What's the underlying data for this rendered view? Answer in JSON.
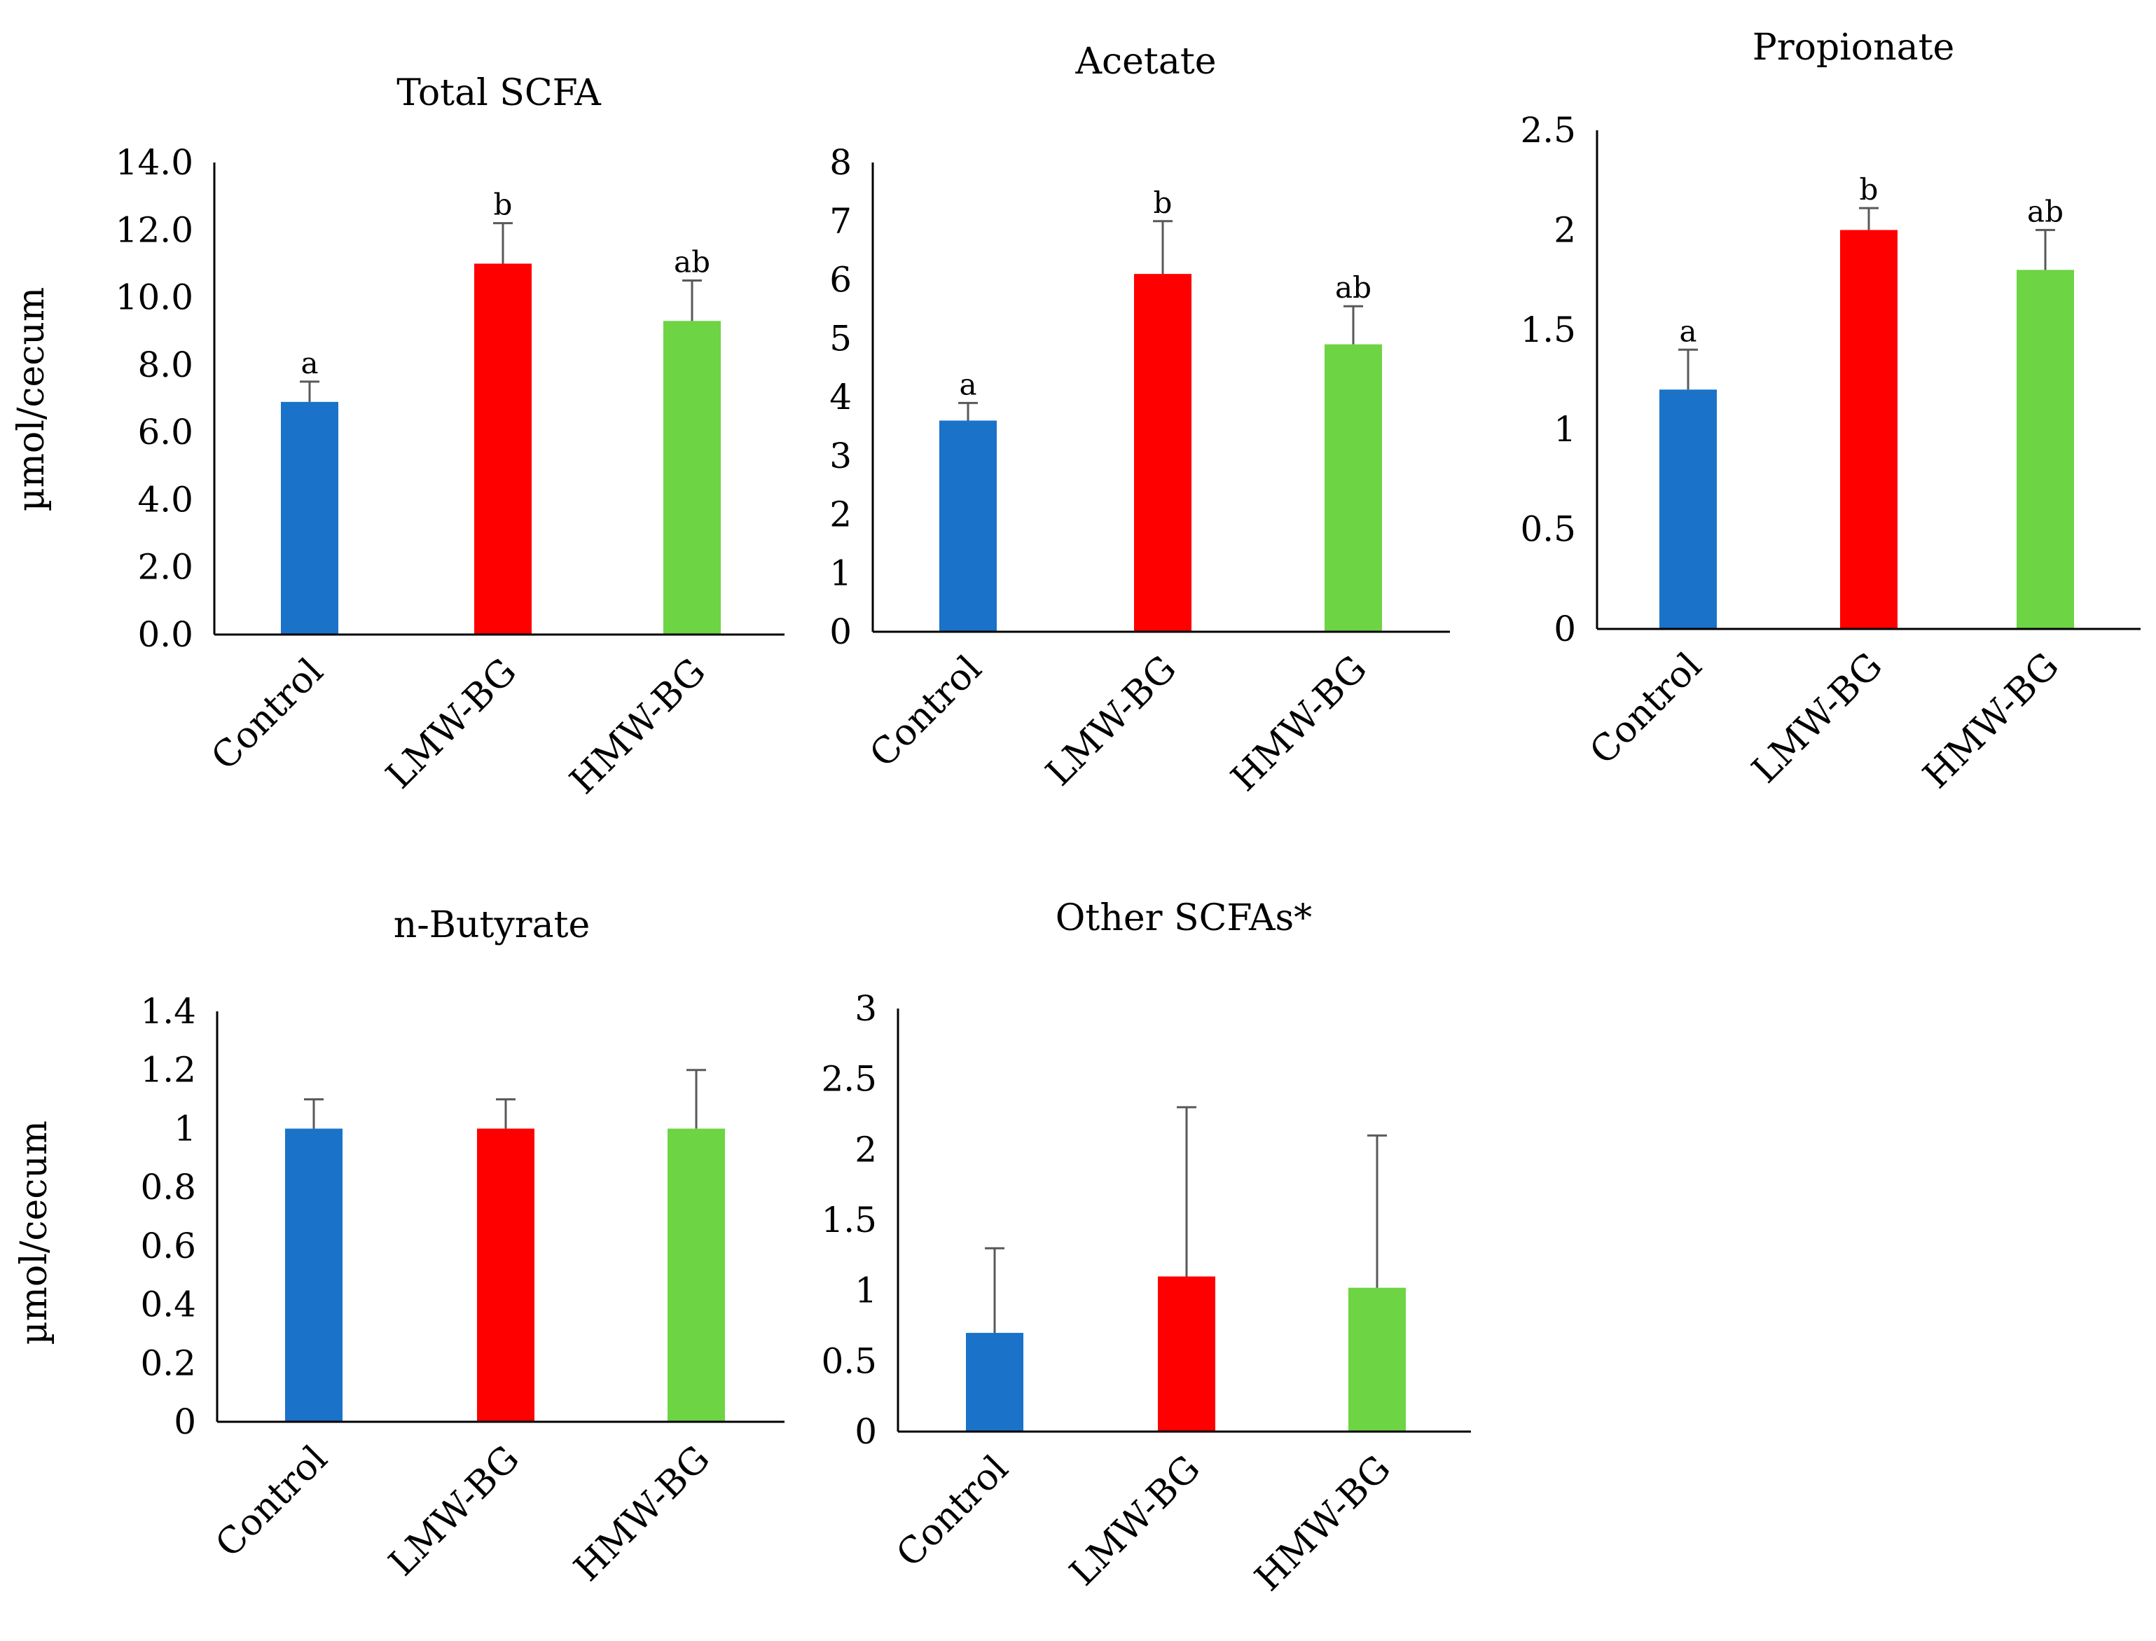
{
  "chart_data": [
    {
      "type": "bar",
      "title": "Total SCFA",
      "ylabel": "µmol/cecum",
      "categories": [
        "Control",
        "LMW-BG",
        "HMW-BG"
      ],
      "values": [
        6.9,
        11.0,
        9.3
      ],
      "errors": [
        0.6,
        1.2,
        1.2
      ],
      "letters": [
        "a",
        "b",
        "ab"
      ],
      "ylim": [
        0,
        14
      ],
      "ticks": [
        "0.0",
        "2.0",
        "4.0",
        "6.0",
        "8.0",
        "10.0",
        "12.0",
        "14.0"
      ],
      "colors": [
        "#1a72c9",
        "#ff0000",
        "#6dd444"
      ]
    },
    {
      "type": "bar",
      "title": "Acetate",
      "ylabel": "",
      "categories": [
        "Control",
        "LMW-BG",
        "HMW-BG"
      ],
      "values": [
        3.6,
        6.1,
        4.9
      ],
      "errors": [
        0.3,
        0.9,
        0.65
      ],
      "letters": [
        "a",
        "b",
        "ab"
      ],
      "ylim": [
        0,
        8
      ],
      "ticks": [
        "0",
        "1",
        "2",
        "3",
        "4",
        "5",
        "6",
        "7",
        "8"
      ],
      "colors": [
        "#1a72c9",
        "#ff0000",
        "#6dd444"
      ]
    },
    {
      "type": "bar",
      "title": "Propionate",
      "ylabel": "",
      "categories": [
        "Control",
        "LMW-BG",
        "HMW-BG"
      ],
      "values": [
        1.2,
        2.0,
        1.8
      ],
      "errors": [
        0.2,
        0.11,
        0.2
      ],
      "letters": [
        "a",
        "b",
        "ab"
      ],
      "ylim": [
        0,
        2.5
      ],
      "ticks": [
        "0",
        "0.5",
        "1",
        "1.5",
        "2",
        "2.5"
      ],
      "colors": [
        "#1a72c9",
        "#ff0000",
        "#6dd444"
      ]
    },
    {
      "type": "bar",
      "title": "n-Butyrate",
      "ylabel": "µmol/cecum",
      "categories": [
        "Control",
        "LMW-BG",
        "HMW-BG"
      ],
      "values": [
        1.0,
        1.0,
        1.0
      ],
      "errors": [
        0.1,
        0.1,
        0.2
      ],
      "letters": [],
      "ylim": [
        0,
        1.4
      ],
      "ticks": [
        "0",
        "0.2",
        "0.4",
        "0.6",
        "0.8",
        "1",
        "1.2",
        "1.4"
      ],
      "colors": [
        "#1a72c9",
        "#ff0000",
        "#6dd444"
      ]
    },
    {
      "type": "bar",
      "title": "Other SCFAs*",
      "ylabel": "",
      "categories": [
        "Control",
        "LMW-BG",
        "HMW-BG"
      ],
      "values": [
        0.7,
        1.1,
        1.02
      ],
      "errors": [
        0.6,
        1.2,
        1.08
      ],
      "letters": [],
      "ylim": [
        0,
        3
      ],
      "ticks": [
        "0",
        "0.5",
        "1",
        "1.5",
        "2",
        "2.5",
        "3"
      ],
      "colors": [
        "#1a72c9",
        "#ff0000",
        "#6dd444"
      ]
    }
  ]
}
